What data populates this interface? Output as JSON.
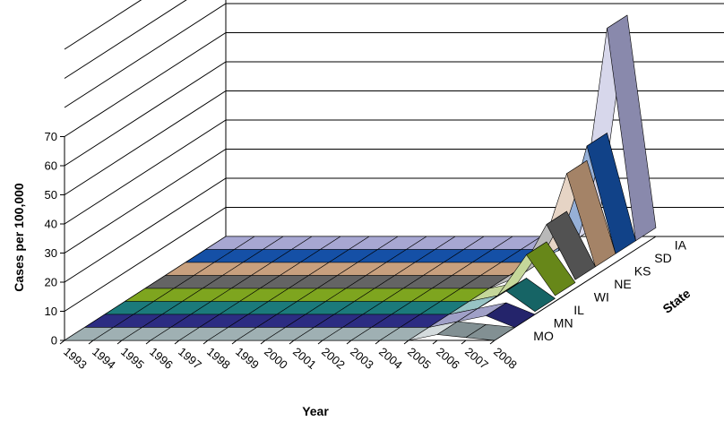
{
  "chart_data": {
    "type": "area",
    "subtype": "3d-surface-ribbons",
    "xlabel": "Year",
    "ylabel": "Cases per 100,000",
    "zlabel": "State",
    "yticks": [
      "0",
      "10",
      "20",
      "30",
      "40",
      "50",
      "60",
      "70"
    ],
    "ylim": [
      0,
      70
    ],
    "grid": true,
    "categories": [
      "1993",
      "1994",
      "1995",
      "1996",
      "1997",
      "1998",
      "1999",
      "2000",
      "2001",
      "2002",
      "2003",
      "2004",
      "2005",
      "2006",
      "2007",
      "2008"
    ],
    "series": [
      {
        "name": "MO",
        "color": "#9fb0b3",
        "values": [
          0,
          0,
          0,
          0,
          0,
          0,
          0,
          0,
          0,
          0,
          0,
          0,
          0,
          2,
          1,
          0
        ]
      },
      {
        "name": "MN",
        "color": "#2c2c82",
        "values": [
          0,
          0,
          0,
          0,
          0,
          0,
          0,
          0,
          0,
          0,
          0,
          0,
          0,
          2,
          4,
          0
        ]
      },
      {
        "name": "IL",
        "color": "#1b7a7b",
        "values": [
          0,
          0,
          0,
          0,
          0,
          0,
          0,
          0,
          0,
          0,
          0,
          0,
          0,
          2,
          8,
          1
        ]
      },
      {
        "name": "WI",
        "color": "#7ea51f",
        "values": [
          0,
          0,
          0,
          0,
          0,
          0,
          0,
          0,
          0,
          0,
          0,
          0,
          0,
          2,
          16,
          2
        ]
      },
      {
        "name": "NE",
        "color": "#646464",
        "values": [
          0,
          0,
          0,
          0,
          0,
          0,
          0,
          0,
          0,
          0,
          0,
          0,
          0,
          4,
          22,
          3
        ]
      },
      {
        "name": "KS",
        "color": "#c8a07e",
        "values": [
          0,
          0,
          0,
          0,
          0,
          0,
          0,
          0,
          0,
          0,
          0,
          0,
          0,
          5,
          35,
          3
        ]
      },
      {
        "name": "SD",
        "color": "#1550a6",
        "values": [
          0,
          0,
          0,
          0,
          0,
          0,
          0,
          0,
          0,
          0,
          0,
          0,
          0,
          4,
          40,
          3
        ]
      },
      {
        "name": "IA",
        "color": "#a7a7d2",
        "values": [
          0,
          0,
          0,
          0,
          0,
          0,
          0,
          0,
          0,
          0,
          0,
          0,
          0,
          4,
          76,
          3
        ]
      }
    ]
  }
}
